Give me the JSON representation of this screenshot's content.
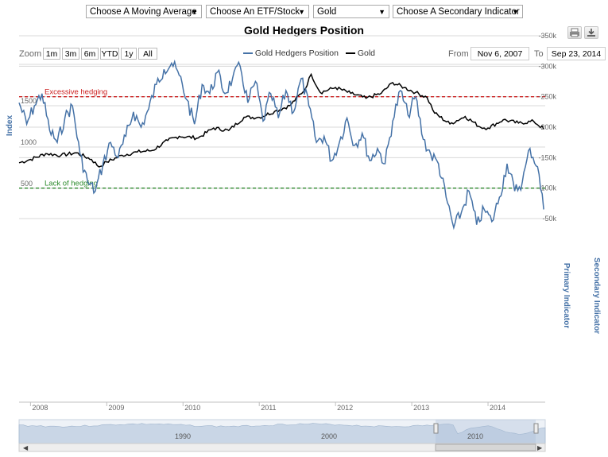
{
  "controls": {
    "moving_average": "Choose A Moving Average",
    "etf_stock": "Choose An ETF/Stock",
    "commodity": "Gold",
    "secondary": "Choose A Secondary Indicator"
  },
  "toolbar": {
    "print_icon": "printer-icon",
    "download_icon": "download-icon"
  },
  "zoom": {
    "label": "Zoom",
    "buttons": [
      "1m",
      "3m",
      "6m",
      "YTD",
      "1y",
      "All"
    ]
  },
  "range": {
    "from_label": "From",
    "from_value": "Nov 6, 2007",
    "to_label": "To",
    "to_value": "Sep 23, 2014"
  },
  "navigator": {
    "labels": [
      "1990",
      "2000",
      "2010"
    ]
  },
  "colors": {
    "gold_line": "#000000",
    "hedgers_line": "#4572a7",
    "lack_line": "#2e8b2e",
    "excess_line": "#cc2222"
  },
  "chart_data": [
    {
      "type": "line",
      "title": "Gold Hedgers Position",
      "ylabel": "Index",
      "ylim": [
        500,
        2000
      ],
      "yticks": [
        "500",
        "1000",
        "1500"
      ],
      "legend": "top-center",
      "series": [
        {
          "name": "Gold",
          "x": [
            2007.85,
            2008.0,
            2008.2,
            2008.4,
            2008.6,
            2008.8,
            2008.9,
            2009.0,
            2009.2,
            2009.4,
            2009.6,
            2009.8,
            2009.95,
            2010.2,
            2010.4,
            2010.6,
            2010.8,
            2011.0,
            2011.2,
            2011.4,
            2011.6,
            2011.68,
            2011.8,
            2012.0,
            2012.2,
            2012.4,
            2012.6,
            2012.75,
            2012.9,
            2013.05,
            2013.2,
            2013.3,
            2013.5,
            2013.7,
            2013.9,
            2014.0,
            2014.2,
            2014.4,
            2014.6,
            2014.73
          ],
          "values": [
            810,
            850,
            920,
            900,
            930,
            850,
            760,
            820,
            900,
            940,
            960,
            1080,
            1130,
            1110,
            1230,
            1200,
            1360,
            1360,
            1430,
            1500,
            1700,
            1880,
            1660,
            1720,
            1650,
            1590,
            1650,
            1780,
            1720,
            1660,
            1600,
            1410,
            1280,
            1370,
            1240,
            1230,
            1330,
            1290,
            1310,
            1220
          ]
        }
      ]
    },
    {
      "type": "line",
      "ylabel": "Primary Indicator",
      "y2label": "Secondary Indicator",
      "ylim": [
        -350000,
        -25000
      ],
      "yticks": [
        "-50k",
        "-100k",
        "-150k",
        "-200k",
        "-250k",
        "-300k",
        "-350k"
      ],
      "xticks": [
        "2008",
        "2009",
        "2010",
        "2011",
        "2012",
        "2013",
        "2014"
      ],
      "annotations": [
        {
          "label": "Lack of hedging",
          "y": -100000
        },
        {
          "label": "Excessive hedging",
          "y": -250000
        }
      ],
      "series": [
        {
          "name": "Gold Hedgers Position",
          "x": [
            2007.85,
            2007.95,
            2008.05,
            2008.15,
            2008.25,
            2008.35,
            2008.45,
            2008.55,
            2008.65,
            2008.75,
            2008.85,
            2008.95,
            2009.05,
            2009.15,
            2009.25,
            2009.35,
            2009.45,
            2009.55,
            2009.65,
            2009.75,
            2009.85,
            2009.95,
            2010.05,
            2010.15,
            2010.25,
            2010.35,
            2010.45,
            2010.55,
            2010.65,
            2010.75,
            2010.85,
            2010.95,
            2011.05,
            2011.15,
            2011.25,
            2011.35,
            2011.45,
            2011.55,
            2011.65,
            2011.75,
            2011.85,
            2011.95,
            2012.05,
            2012.15,
            2012.25,
            2012.35,
            2012.45,
            2012.55,
            2012.65,
            2012.75,
            2012.85,
            2012.95,
            2013.05,
            2013.15,
            2013.25,
            2013.35,
            2013.45,
            2013.55,
            2013.65,
            2013.75,
            2013.85,
            2013.95,
            2014.05,
            2014.15,
            2014.25,
            2014.35,
            2014.45,
            2014.55,
            2014.65,
            2014.73
          ],
          "values": [
            -240000,
            -205000,
            -235000,
            -255000,
            -195000,
            -175000,
            -215000,
            -235000,
            -155000,
            -110000,
            -95000,
            -140000,
            -175000,
            -150000,
            -185000,
            -225000,
            -200000,
            -230000,
            -270000,
            -295000,
            -305000,
            -285000,
            -245000,
            -205000,
            -270000,
            -255000,
            -290000,
            -255000,
            -280000,
            -300000,
            -240000,
            -275000,
            -210000,
            -255000,
            -215000,
            -260000,
            -225000,
            -280000,
            -235000,
            -175000,
            -185000,
            -145000,
            -175000,
            -215000,
            -170000,
            -190000,
            -145000,
            -165000,
            -140000,
            -210000,
            -260000,
            -220000,
            -250000,
            -180000,
            -155000,
            -140000,
            -85000,
            -35000,
            -60000,
            -95000,
            -40000,
            -65000,
            -45000,
            -85000,
            -140000,
            -95000,
            -110000,
            -165000,
            -135000,
            -65000
          ]
        }
      ]
    }
  ]
}
